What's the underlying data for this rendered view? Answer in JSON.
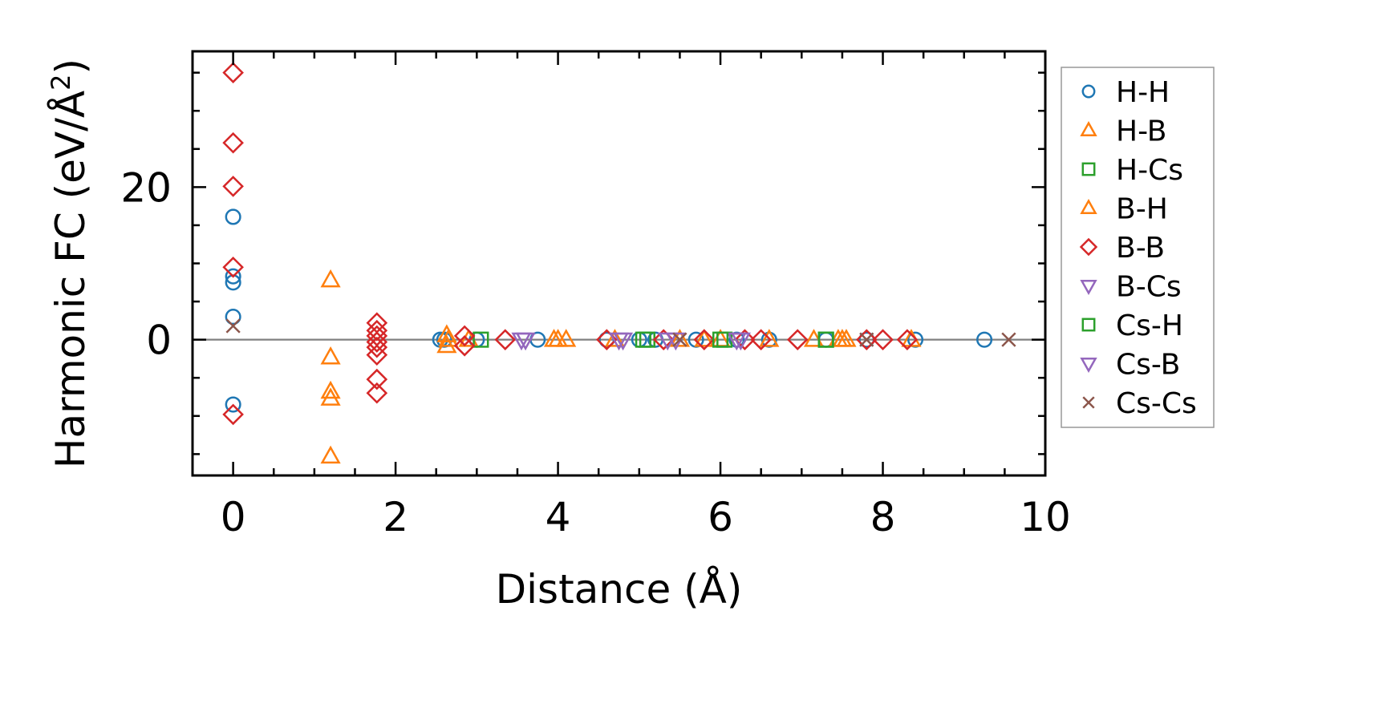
{
  "chart_data": {
    "type": "scatter",
    "xlabel": "Distance (Å)",
    "ylabel": "Harmonic FC (eV/Å",
    "ylabel_sup": "2",
    "ylabel_close": ")",
    "xlim": [
      -0.5,
      10
    ],
    "ylim": [
      -17.8,
      37.8
    ],
    "xticks": [
      0,
      2,
      4,
      6,
      8,
      10
    ],
    "xtick_labels": [
      "0",
      "2",
      "4",
      "6",
      "8",
      "10"
    ],
    "yticks": [
      0,
      20
    ],
    "ytick_labels": [
      "0",
      "20"
    ],
    "minor_x_step": 0.5,
    "minor_y_step": 5,
    "grid": false,
    "zero_line": true,
    "legend_position": "outside-right",
    "series": [
      {
        "name": "H-H",
        "marker": "circle",
        "color": "#1f77b4",
        "points": [
          [
            0,
            16.1
          ],
          [
            0,
            8.3
          ],
          [
            0,
            7.5
          ],
          [
            0,
            3.0
          ],
          [
            0,
            -8.5
          ],
          [
            2.55,
            0
          ],
          [
            2.6,
            0
          ],
          [
            3.0,
            0
          ],
          [
            3.75,
            0
          ],
          [
            4.6,
            0
          ],
          [
            5.0,
            0
          ],
          [
            5.2,
            0
          ],
          [
            5.7,
            0
          ],
          [
            6.2,
            0
          ],
          [
            6.6,
            0
          ],
          [
            7.3,
            0
          ],
          [
            7.8,
            0
          ],
          [
            8.4,
            0
          ],
          [
            9.25,
            0
          ]
        ]
      },
      {
        "name": "H-B",
        "marker": "triangle-up",
        "color": "#ff7f0e",
        "points": [
          [
            1.2,
            7.8
          ],
          [
            1.2,
            -2.3
          ],
          [
            1.2,
            -6.8
          ],
          [
            1.2,
            -7.7
          ],
          [
            1.2,
            -15.3
          ],
          [
            2.63,
            0.6
          ],
          [
            2.63,
            -0.8
          ],
          [
            2.9,
            0
          ],
          [
            3.95,
            0
          ],
          [
            4.1,
            0
          ],
          [
            4.7,
            0
          ],
          [
            5.5,
            0
          ],
          [
            6.0,
            0
          ],
          [
            6.6,
            0
          ],
          [
            7.15,
            0
          ],
          [
            7.45,
            0
          ],
          [
            7.55,
            0
          ],
          [
            8.35,
            0
          ]
        ]
      },
      {
        "name": "H-Cs",
        "marker": "square",
        "color": "#2ca02c",
        "points": [
          [
            3.05,
            0
          ],
          [
            5.1,
            0
          ],
          [
            6.05,
            0
          ],
          [
            7.3,
            0
          ]
        ]
      },
      {
        "name": "B-H",
        "marker": "triangle-up",
        "color": "#ff7f0e",
        "points": [
          [
            2.65,
            0
          ],
          [
            4.0,
            0
          ],
          [
            5.8,
            0
          ],
          [
            7.5,
            0
          ]
        ]
      },
      {
        "name": "B-B",
        "marker": "diamond",
        "color": "#d62728",
        "points": [
          [
            0,
            35.0
          ],
          [
            0,
            25.8
          ],
          [
            0,
            20.1
          ],
          [
            0,
            9.5
          ],
          [
            0,
            -9.8
          ],
          [
            1.77,
            2.2
          ],
          [
            1.77,
            1.2
          ],
          [
            1.77,
            0.5
          ],
          [
            1.77,
            -0.3
          ],
          [
            1.77,
            -1.0
          ],
          [
            1.77,
            -2.0
          ],
          [
            1.77,
            -5.2
          ],
          [
            1.77,
            -7.0
          ],
          [
            2.85,
            0.5
          ],
          [
            2.85,
            -0.8
          ],
          [
            3.35,
            0
          ],
          [
            4.6,
            0
          ],
          [
            5.3,
            0
          ],
          [
            5.8,
            0
          ],
          [
            6.3,
            0
          ],
          [
            6.5,
            0
          ],
          [
            6.95,
            0
          ],
          [
            7.8,
            0
          ],
          [
            8.0,
            0
          ],
          [
            8.3,
            0
          ]
        ]
      },
      {
        "name": "B-Cs",
        "marker": "triangle-down",
        "color": "#9467bd",
        "points": [
          [
            3.6,
            0
          ],
          [
            4.8,
            0
          ],
          [
            5.45,
            0
          ],
          [
            6.2,
            0
          ]
        ]
      },
      {
        "name": "Cs-H",
        "marker": "square",
        "color": "#2ca02c",
        "points": [
          [
            5.05,
            0
          ],
          [
            6.0,
            0
          ],
          [
            7.3,
            0
          ]
        ]
      },
      {
        "name": "Cs-B",
        "marker": "triangle-down",
        "color": "#9467bd",
        "points": [
          [
            3.55,
            0
          ],
          [
            4.75,
            0
          ],
          [
            5.35,
            0
          ],
          [
            6.25,
            0
          ]
        ]
      },
      {
        "name": "Cs-Cs",
        "marker": "x",
        "color": "#8c564b",
        "points": [
          [
            0,
            1.8
          ],
          [
            5.5,
            0
          ],
          [
            7.8,
            0
          ],
          [
            9.55,
            0
          ]
        ]
      }
    ]
  }
}
